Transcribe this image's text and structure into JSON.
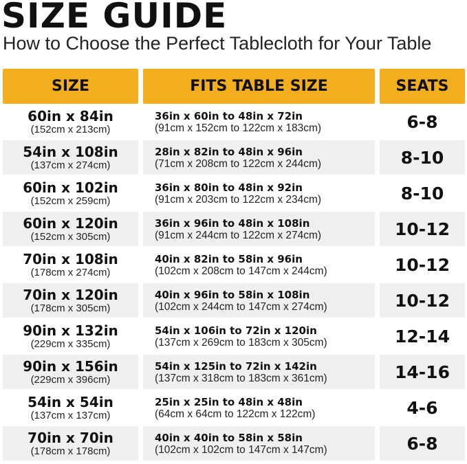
{
  "title": "SIZE GUIDE",
  "subtitle": "How to Choose the Perfect Tablecloth for Your Table",
  "accent_color": "#f2ae1c",
  "headers": [
    "SIZE",
    "FITS TABLE SIZE",
    "SEATS"
  ],
  "rows": [
    {
      "size": "60in x 84in",
      "size_cm": "(152cm x 213cm)",
      "fits": "36in x 60in to 48in x 72in",
      "fits_cm": "(91cm x 152cm to 122cm x 183cm)",
      "seats": "6-8"
    },
    {
      "size": "54in x 108in",
      "size_cm": "(137cm x 274cm)",
      "fits": "28in x 82in to 48in x 96in",
      "fits_cm": "(71cm x 208cm to 122cm x 244cm)",
      "seats": "8-10"
    },
    {
      "size": "60in x 102in",
      "size_cm": "(152cm x 259cm)",
      "fits": "36in x 80in to 48in x 92in",
      "fits_cm": "(91cm x 203cm to 122cm x 234cm)",
      "seats": "8-10"
    },
    {
      "size": "60in x 120in",
      "size_cm": "(152cm x 305cm)",
      "fits": "36in x 96in to 48in x 108in",
      "fits_cm": "(91cm x 244cm to 122cm x 274cm)",
      "seats": "10-12"
    },
    {
      "size": "70in x 108in",
      "size_cm": "(178cm x 274cm)",
      "fits": "40in x 82in to 58in x 96in",
      "fits_cm": "(102cm x 208cm to 147cm x 244cm)",
      "seats": "10-12"
    },
    {
      "size": "70in x 120in",
      "size_cm": "(178cm x 305cm)",
      "fits": "40in x 96in to 58in x 108in",
      "fits_cm": "(102cm x 244cm to 147cm x 274cm)",
      "seats": "10-12"
    },
    {
      "size": "90in x 132in",
      "size_cm": "(229cm x 335cm)",
      "fits": "54in x 106in to 72in x 120in",
      "fits_cm": "(137cm x 269cm to 183cm x 305cm)",
      "seats": "12-14"
    },
    {
      "size": "90in x 156in",
      "size_cm": "(229cm x 396cm)",
      "fits": "54in x 125in to 72in x 142in",
      "fits_cm": "(137cm x 318cm to 183cm x 361cm)",
      "seats": "14-16"
    },
    {
      "size": "54in x 54in",
      "size_cm": "(137cm x 137cm)",
      "fits": "25in x 25in to 48in x 48in",
      "fits_cm": "(64cm x 64cm to 122cm x 122cm)",
      "seats": "4-6"
    },
    {
      "size": "70in x 70in",
      "size_cm": "(178cm x 178cm)",
      "fits": "40in x 40in to 58in x 58in",
      "fits_cm": "(102cm x 102cm to 147cm x 147cm)",
      "seats": "6-8"
    }
  ]
}
